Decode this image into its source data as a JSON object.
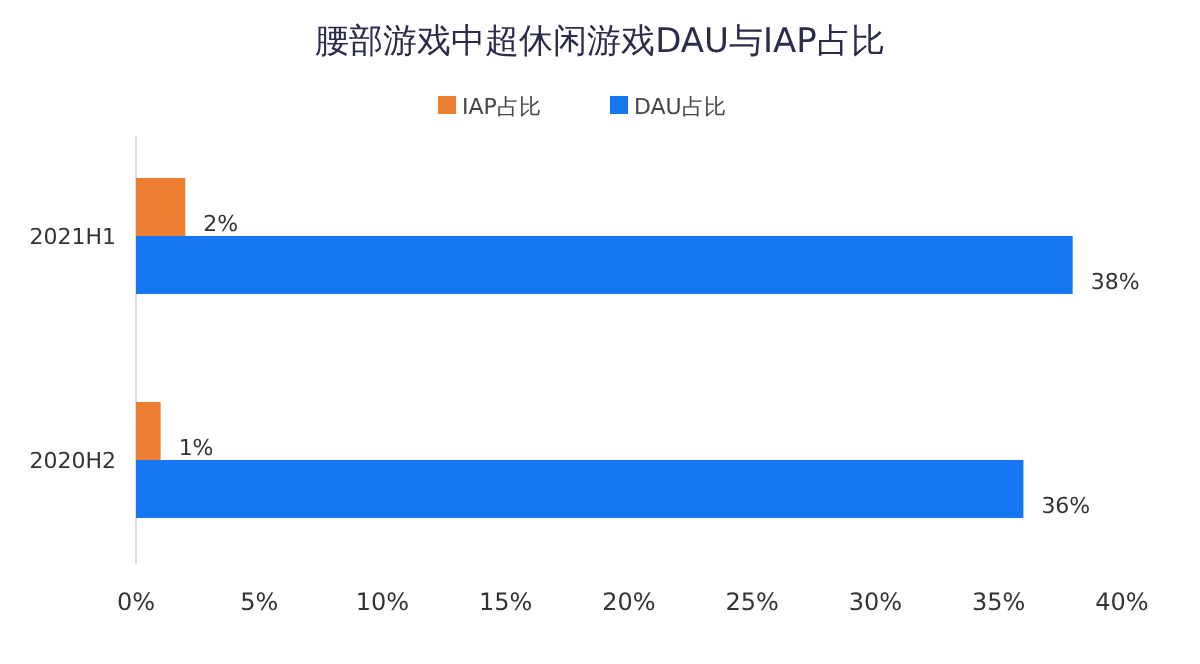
{
  "chart_data": {
    "type": "bar",
    "orientation": "horizontal",
    "title": "腰部游戏中超休闲游戏DAU与IAP占比",
    "categories": [
      "2021H1",
      "2020H2"
    ],
    "series": [
      {
        "name": "IAP占比",
        "color": "#ed7d31",
        "values": [
          2,
          1
        ],
        "value_labels": [
          "2%",
          "1%"
        ]
      },
      {
        "name": "DAU占比",
        "color": "#1677f5",
        "values": [
          38,
          36
        ],
        "value_labels": [
          "38%",
          "36%"
        ]
      }
    ],
    "xlim": [
      0,
      40
    ],
    "xticks": [
      {
        "value": 0,
        "label": "0%"
      },
      {
        "value": 5,
        "label": "5%"
      },
      {
        "value": 10,
        "label": "10%"
      },
      {
        "value": 15,
        "label": "15%"
      },
      {
        "value": 20,
        "label": "20%"
      },
      {
        "value": 25,
        "label": "25%"
      },
      {
        "value": 30,
        "label": "30%"
      },
      {
        "value": 35,
        "label": "35%"
      },
      {
        "value": 40,
        "label": "40%"
      }
    ],
    "legend": "top"
  }
}
